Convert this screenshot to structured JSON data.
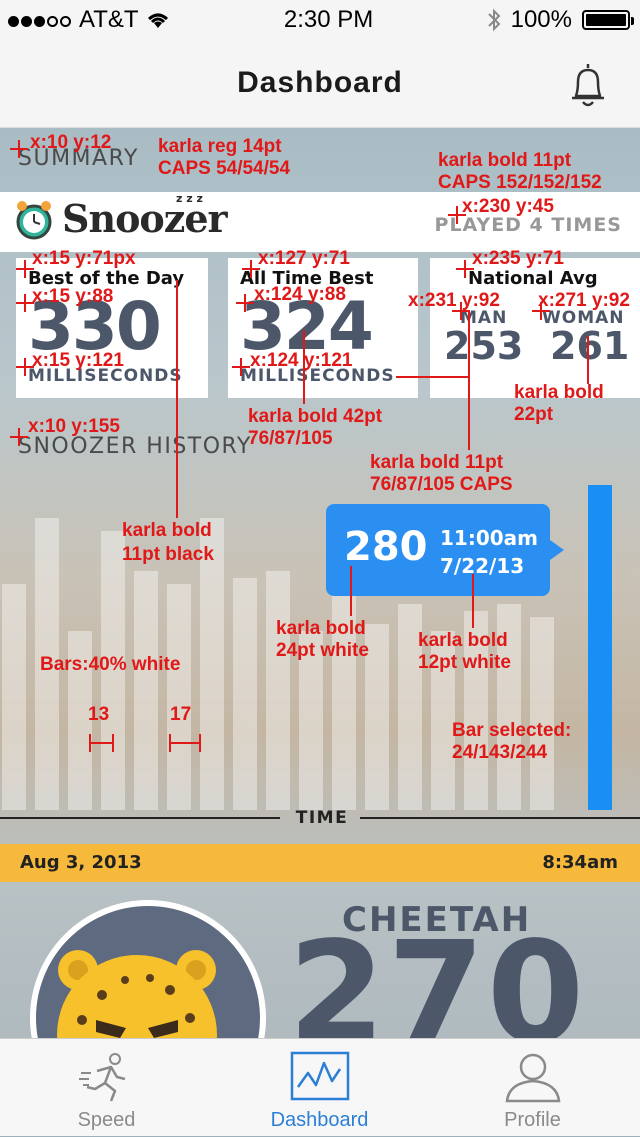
{
  "status_bar": {
    "carrier": "AT&T",
    "time": "2:30 PM",
    "battery": "100%"
  },
  "nav": {
    "title": "Dashboard"
  },
  "summary": {
    "section_label": "SUMMARY",
    "game_name": "Snoozer",
    "zz": "z z z",
    "played": "PLAYED 4 TIMES",
    "best_day": {
      "label": "Best of the Day",
      "value": "330",
      "unit": "MILLISECONDS"
    },
    "all_time": {
      "label": "All Time Best",
      "value": "324",
      "unit": "MILLISECONDS"
    },
    "national": {
      "label": "National Avg",
      "man_label": "MAN",
      "man_value": "253",
      "woman_label": "WOMAN",
      "woman_value": "261"
    }
  },
  "history": {
    "section_label": "SNOOZER HISTORY",
    "tooltip": {
      "value": "280",
      "time": "11:00am",
      "date": "7/22/13"
    },
    "axis_label": "TIME",
    "colors": {
      "bar": "rgba(255,255,255,0.4)",
      "selected": "#188ff4"
    }
  },
  "chart_data": {
    "type": "bar",
    "title": "SNOOZER HISTORY",
    "xlabel": "TIME",
    "ylabel": "",
    "values": [
      0.68,
      0.88,
      0.54,
      0.84,
      0.72,
      0.68,
      0.88,
      0.7,
      0.72,
      0.54,
      0.72,
      0.56,
      0.62,
      0.54,
      0.6,
      0.62,
      0.58,
      0.98
    ],
    "selected_index": 17,
    "selected_value": 280
  },
  "latest": {
    "date": "Aug 3, 2013",
    "time": "8:34am",
    "animal": "CHEETAH",
    "score": "270"
  },
  "tabs": [
    {
      "label": "Speed",
      "icon": "runner-icon"
    },
    {
      "label": "Dashboard",
      "icon": "pulse-chart-icon"
    },
    {
      "label": "Profile",
      "icon": "person-icon"
    }
  ],
  "annotations": {
    "a1": "x:10 y:12",
    "a2": "karla reg 14pt",
    "a3": "CAPS 54/54/54",
    "a4": "karla bold 11pt",
    "a5": "CAPS 152/152/152",
    "a6": "x:230 y:45",
    "a7": "x:15 y:71px",
    "a8": "x:127 y:71",
    "a9": "x:235 y:71",
    "a10": "x:15 y:88",
    "a11": "x:124 y:88",
    "a12": "x:231 y:92",
    "a13": "x:271 y:92",
    "a14": "x:15 y:121",
    "a15": "x:124 y:121",
    "a16": "karla bold",
    "a17": "22pt",
    "a18": "karla bold 42pt",
    "a19": "76/87/105",
    "a20": "x:10 y:155",
    "a21": "karla bold 11pt",
    "a22": "76/87/105 CAPS",
    "a23": "karla bold",
    "a24": "11pt black",
    "a25": "karla bold",
    "a26": "24pt white",
    "a27": "karla bold",
    "a28": "12pt white",
    "a29": "Bars:40% white",
    "a30": "13",
    "a31": "17",
    "a32": "Bar selected:",
    "a33": "24/143/244"
  }
}
